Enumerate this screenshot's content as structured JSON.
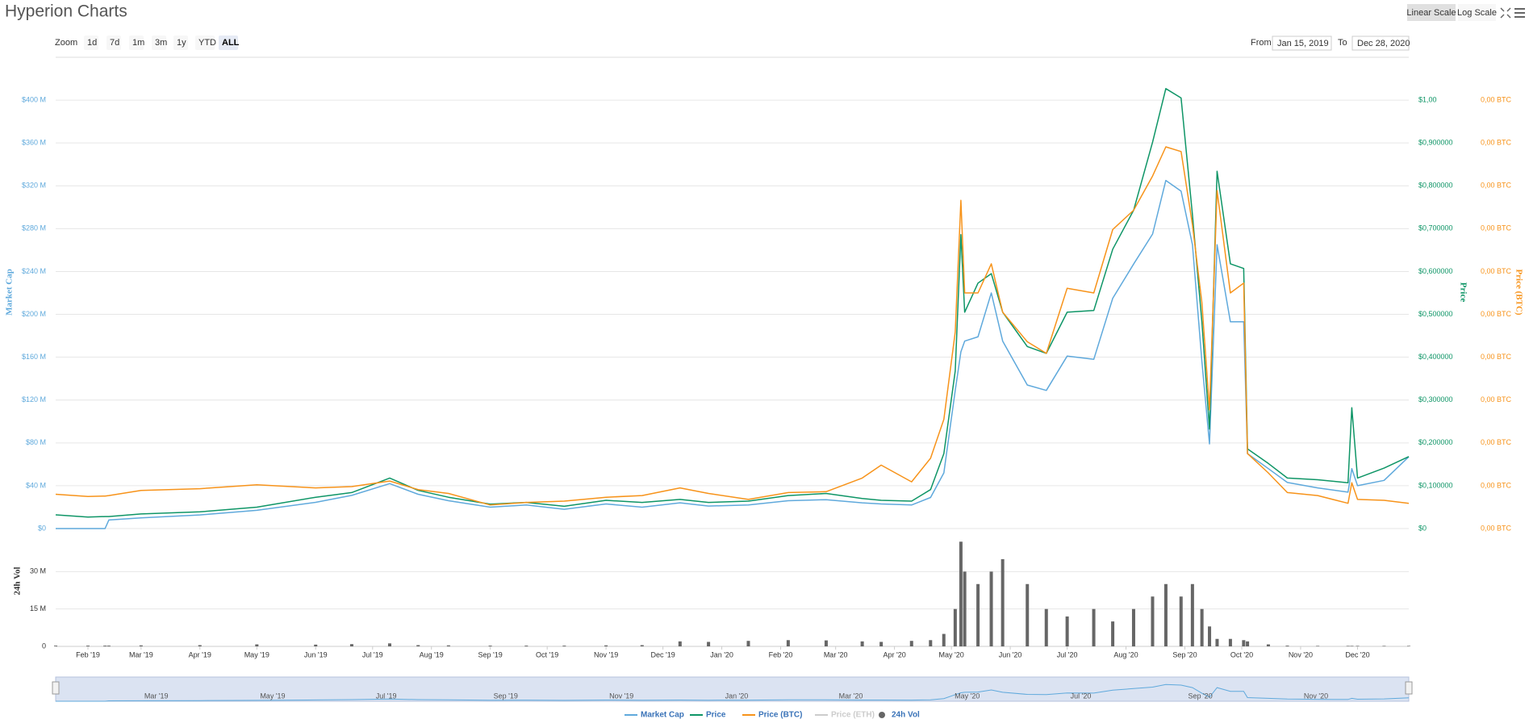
{
  "toolbar": {
    "zoom_label": "Zoom",
    "zoom_buttons": [
      "1d",
      "7d",
      "1m",
      "3m",
      "1y",
      "YTD",
      "ALL"
    ],
    "zoom_selected": 6,
    "from_label": "From",
    "from": "Jan 15, 2019",
    "to_label": "To",
    "to": "Dec 28, 2020",
    "scale_buttons": [
      "Linear Scale",
      "Log Scale"
    ],
    "scale_selected": 0
  },
  "chart_data": {
    "type": "line",
    "title": "Hyperion Charts",
    "ylabel": "Market Cap",
    "y2label": "Price",
    "y3label": "Price (BTC)",
    "vollabel": "24h Vol",
    "x": [
      "2019-01-15",
      "2019-02-01",
      "2019-02-10",
      "2019-02-12",
      "2019-03-01",
      "2019-04-01",
      "2019-05-01",
      "2019-06-01",
      "2019-06-20",
      "2019-07-10",
      "2019-07-25",
      "2019-08-10",
      "2019-09-01",
      "2019-09-20",
      "2019-10-10",
      "2019-11-01",
      "2019-11-20",
      "2019-12-10",
      "2019-12-25",
      "2020-01-15",
      "2020-02-05",
      "2020-02-25",
      "2020-03-15",
      "2020-03-25",
      "2020-04-10",
      "2020-04-20",
      "2020-04-27",
      "2020-05-03",
      "2020-05-06",
      "2020-05-08",
      "2020-05-15",
      "2020-05-22",
      "2020-05-28",
      "2020-06-10",
      "2020-06-20",
      "2020-07-01",
      "2020-07-15",
      "2020-07-25",
      "2020-08-05",
      "2020-08-15",
      "2020-08-22",
      "2020-08-30",
      "2020-09-05",
      "2020-09-10",
      "2020-09-14",
      "2020-09-18",
      "2020-09-25",
      "2020-10-02",
      "2020-10-04",
      "2020-10-15",
      "2020-10-25",
      "2020-11-10",
      "2020-11-26",
      "2020-11-28",
      "2020-12-01",
      "2020-12-15",
      "2020-12-28"
    ],
    "xlim": [
      "2019-01-15",
      "2020-12-28"
    ],
    "xticks": [
      {
        "value": "2019-02-01",
        "label": "Feb '19"
      },
      {
        "value": "2019-03-01",
        "label": "Mar '19"
      },
      {
        "value": "2019-04-01",
        "label": "Apr '19"
      },
      {
        "value": "2019-05-01",
        "label": "May '19"
      },
      {
        "value": "2019-06-01",
        "label": "Jun '19"
      },
      {
        "value": "2019-07-01",
        "label": "Jul '19"
      },
      {
        "value": "2019-08-01",
        "label": "Aug '19"
      },
      {
        "value": "2019-09-01",
        "label": "Sep '19"
      },
      {
        "value": "2019-10-01",
        "label": "Oct '19"
      },
      {
        "value": "2019-11-01",
        "label": "Nov '19"
      },
      {
        "value": "2019-12-01",
        "label": "Dec '19"
      },
      {
        "value": "2020-01-01",
        "label": "Jan '20"
      },
      {
        "value": "2020-02-01",
        "label": "Feb '20"
      },
      {
        "value": "2020-03-01",
        "label": "Mar '20"
      },
      {
        "value": "2020-04-01",
        "label": "Apr '20"
      },
      {
        "value": "2020-05-01",
        "label": "May '20"
      },
      {
        "value": "2020-06-01",
        "label": "Jun '20"
      },
      {
        "value": "2020-07-01",
        "label": "Jul '20"
      },
      {
        "value": "2020-08-01",
        "label": "Aug '20"
      },
      {
        "value": "2020-09-01",
        "label": "Sep '20"
      },
      {
        "value": "2020-10-01",
        "label": "Oct '20"
      },
      {
        "value": "2020-11-01",
        "label": "Nov '20"
      },
      {
        "value": "2020-12-01",
        "label": "Dec '20"
      }
    ],
    "ylim": [
      0,
      440000000
    ],
    "yticks": [
      {
        "value": 0,
        "label": "$0"
      },
      {
        "value": 40000000,
        "label": "$40 M"
      },
      {
        "value": 80000000,
        "label": "$80 M"
      },
      {
        "value": 120000000,
        "label": "$120 M"
      },
      {
        "value": 160000000,
        "label": "$160 M"
      },
      {
        "value": 200000000,
        "label": "$200 M"
      },
      {
        "value": 240000000,
        "label": "$240 M"
      },
      {
        "value": 280000000,
        "label": "$280 M"
      },
      {
        "value": 320000000,
        "label": "$320 M"
      },
      {
        "value": 360000000,
        "label": "$360 M"
      },
      {
        "value": 400000000,
        "label": "$400 M"
      }
    ],
    "y2lim": [
      0,
      1.1
    ],
    "y2ticks": [
      {
        "value": 0,
        "label": "$0"
      },
      {
        "value": 0.1,
        "label": "$0,100000"
      },
      {
        "value": 0.2,
        "label": "$0,200000"
      },
      {
        "value": 0.3,
        "label": "$0,300000"
      },
      {
        "value": 0.4,
        "label": "$0,400000"
      },
      {
        "value": 0.5,
        "label": "$0,500000"
      },
      {
        "value": 0.6,
        "label": "$0,600000"
      },
      {
        "value": 0.7,
        "label": "$0,700000"
      },
      {
        "value": 0.8,
        "label": "$0,800000"
      },
      {
        "value": 0.9,
        "label": "$0,900000"
      },
      {
        "value": 1,
        "label": "$1,00"
      }
    ],
    "y3lim": [
      0,
      0.00011
    ],
    "y3ticks": [
      {
        "value": 0,
        "label": "0,00 BTC"
      },
      {
        "value": 1e-05,
        "label": "0,00 BTC"
      },
      {
        "value": 2e-05,
        "label": "0,00 BTC"
      },
      {
        "value": 3e-05,
        "label": "0,00 BTC"
      },
      {
        "value": 4e-05,
        "label": "0,00 BTC"
      },
      {
        "value": 5e-05,
        "label": "0,00 BTC"
      },
      {
        "value": 6e-05,
        "label": "0,00 BTC"
      },
      {
        "value": 7e-05,
        "label": "0,00 BTC"
      },
      {
        "value": 8e-05,
        "label": "0,00 BTC"
      },
      {
        "value": 9e-05,
        "label": "0,00 BTC"
      },
      {
        "value": 0.0001,
        "label": "0,00 BTC"
      }
    ],
    "vollim": [
      0,
      45000000
    ],
    "volticks": [
      0,
      {
        "value": 15000000,
        "label": "15 M"
      },
      {
        "value": 30000000,
        "label": "30 M"
      }
    ],
    "grid": true,
    "series": [
      {
        "name": "Market Cap",
        "color": "#5fa9dc",
        "axis": "y",
        "values": [
          0,
          0,
          0,
          8000000,
          10000000,
          12700000,
          17000000,
          24500000,
          31000000,
          42000000,
          32000000,
          26000000,
          20000000,
          22000000,
          18000000,
          23000000,
          20000000,
          24000000,
          21000000,
          22000000,
          26000000,
          27000000,
          24000000,
          23000000,
          22000000,
          29000000,
          52000000,
          129000000,
          165000000,
          175000000,
          179000000,
          220000000,
          175000000,
          134000000,
          129000000,
          161000000,
          158000000,
          215000000,
          247000000,
          275000000,
          325000000,
          315000000,
          265000000,
          156000000,
          79000000,
          265000000,
          193000000,
          193000000,
          70000000,
          56000000,
          43000000,
          38000000,
          34000000,
          56000000,
          40000000,
          45000000,
          67000000
        ]
      },
      {
        "name": "Price",
        "color": "#0e9566",
        "axis": "y2",
        "values": [
          0.032,
          0.027,
          0.028,
          0.028,
          0.034,
          0.039,
          0.05,
          0.073,
          0.084,
          0.118,
          0.089,
          0.073,
          0.057,
          0.061,
          0.052,
          0.066,
          0.061,
          0.068,
          0.061,
          0.064,
          0.077,
          0.082,
          0.07,
          0.066,
          0.064,
          0.091,
          0.175,
          0.368,
          0.686,
          0.505,
          0.573,
          0.595,
          0.505,
          0.425,
          0.409,
          0.505,
          0.509,
          0.652,
          0.743,
          0.902,
          1.027,
          1.005,
          0.732,
          0.482,
          0.232,
          0.834,
          0.618,
          0.607,
          0.186,
          0.152,
          0.118,
          0.114,
          0.107,
          0.282,
          0.118,
          0.141,
          0.168
        ]
      },
      {
        "name": "Price (BTC)",
        "color": "#f7931a",
        "axis": "y3",
        "values": [
          8e-06,
          7.5e-06,
          7.6e-06,
          7.7e-06,
          8.9e-06,
          9.3e-06,
          1.02e-05,
          9.5e-06,
          9.8e-06,
          1.11e-05,
          9.1e-06,
          8.2e-06,
          5.5e-06,
          6.1e-06,
          6.4e-06,
          7.3e-06,
          7.7e-06,
          9.5e-06,
          8.2e-06,
          6.8e-06,
          8.4e-06,
          8.6e-06,
          1.18e-05,
          1.48e-05,
          1.09e-05,
          1.64e-05,
          2.55e-05,
          4.59e-05,
          7.66e-05,
          5.5e-05,
          5.5e-05,
          6.18e-05,
          5.05e-05,
          4.36e-05,
          4.09e-05,
          5.61e-05,
          5.5e-05,
          6.98e-05,
          7.43e-05,
          8.23e-05,
          8.91e-05,
          8.8e-05,
          7.09e-05,
          5.27e-05,
          2.77e-05,
          7.89e-05,
          5.5e-05,
          5.73e-05,
          1.75e-05,
          1.3e-05,
          8.4e-06,
          7.7e-06,
          5.9e-06,
          1.07e-05,
          6.8e-06,
          6.6e-06,
          5.9e-06
        ]
      },
      {
        "name": "Price (ETH)",
        "color": "#cccccc",
        "axis": "y3",
        "visible": false
      },
      {
        "name": "24h Vol",
        "color": "#666666",
        "axis": "vol",
        "type": "column",
        "values": [
          300000,
          300000,
          300000,
          300000,
          400000,
          500000,
          800000,
          700000,
          900000,
          1200000,
          500000,
          400000,
          300000,
          300000,
          300000,
          400000,
          500000,
          2000000,
          1800000,
          2200000,
          2500000,
          2400000,
          2000000,
          1800000,
          2200000,
          2500000,
          5000000,
          15000000,
          42000000,
          30000000,
          25000000,
          30000000,
          35000000,
          25000000,
          15000000,
          12000000,
          15000000,
          10000000,
          15000000,
          20000000,
          25000000,
          20000000,
          25000000,
          15000000,
          8000000,
          3000000,
          3000000,
          2500000,
          2000000,
          800000,
          300000,
          200000,
          200000,
          200000,
          200000,
          200000,
          200000
        ]
      }
    ]
  }
}
